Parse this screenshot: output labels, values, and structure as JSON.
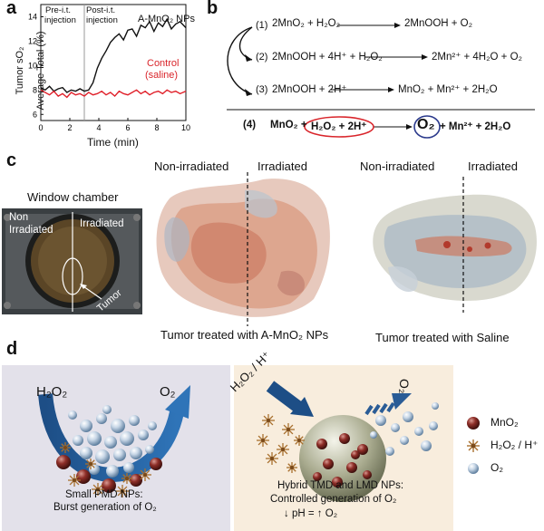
{
  "panel_a": {
    "label": "a",
    "pre_label_1": "Pre-i.t.",
    "pre_label_2": "injection",
    "post_label": "Post-i.t. injection",
    "series_label_np": "A-MnO₂ NPs",
    "series_label_control_1": "Control",
    "series_label_control_2": "(saline)",
    "chart_data": {
      "type": "line",
      "ylabel_1": "Tumor sO₂",
      "ylabel_2": "Average Total (%)",
      "xlabel": "Time (min)",
      "x_ticks": [
        "0",
        "2",
        "4",
        "6",
        "8",
        "10"
      ],
      "y_ticks": [
        "6",
        "8",
        "10",
        "12",
        "14"
      ],
      "xlim": [
        0,
        10
      ],
      "ylim": [
        5.5,
        15
      ],
      "injection_time": 3,
      "colors": {
        "np": "#111111",
        "control": "#e0202a"
      },
      "series": [
        {
          "name": "A-MnO₂ NPs",
          "x": [
            0,
            0.3,
            0.6,
            0.9,
            1.2,
            1.5,
            1.8,
            2.1,
            2.4,
            2.7,
            3.0,
            3.3,
            3.6,
            3.9,
            4.2,
            4.5,
            4.8,
            5.1,
            5.4,
            5.7,
            6.0,
            6.3,
            6.6,
            6.9,
            7.2,
            7.5,
            7.8,
            8.1,
            8.4,
            8.7,
            9.0,
            9.3,
            9.6,
            10
          ],
          "y": [
            8.2,
            8.0,
            8.3,
            7.9,
            8.1,
            8.2,
            7.8,
            8.0,
            7.9,
            8.1,
            7.9,
            8.0,
            8.6,
            9.8,
            10.6,
            11.2,
            11.9,
            12.3,
            12.6,
            12.1,
            12.9,
            13.0,
            12.4,
            13.3,
            13.1,
            13.6,
            12.8,
            13.5,
            13.2,
            13.8,
            13.0,
            13.4,
            13.6,
            13.1
          ]
        },
        {
          "name": "Control (saline)",
          "x": [
            0,
            0.3,
            0.6,
            0.9,
            1.2,
            1.5,
            1.8,
            2.1,
            2.4,
            2.7,
            3.0,
            3.3,
            3.6,
            3.9,
            4.2,
            4.5,
            4.8,
            5.1,
            5.4,
            5.7,
            6.0,
            6.3,
            6.6,
            6.9,
            7.2,
            7.5,
            7.8,
            8.1,
            8.4,
            8.7,
            9.0,
            9.3,
            9.6,
            10
          ],
          "y": [
            8.0,
            7.8,
            7.6,
            7.9,
            7.5,
            7.7,
            7.4,
            7.8,
            7.6,
            7.7,
            7.5,
            7.8,
            7.6,
            7.7,
            7.9,
            7.6,
            7.8,
            7.5,
            7.9,
            7.7,
            7.6,
            7.8,
            8.0,
            7.7,
            7.9,
            7.6,
            7.8,
            7.9,
            7.7,
            8.0,
            7.8,
            7.9,
            7.7,
            7.9
          ]
        }
      ]
    }
  },
  "panel_b": {
    "label": "b",
    "eq1_num": "(1)",
    "eq1_left": "2MnO₂ + H₂O₂",
    "eq1_right": "2MnOOH + O₂",
    "eq2_num": "(2)",
    "eq2_left": "2MnOOH + 4H⁺ + H₂O₂",
    "eq2_right": "2Mn²⁺ + 4H₂O + O₂",
    "eq3_num": "(3)",
    "eq3_left": "2MnOOH + 2H⁺",
    "eq3_right": "MnO₂ + Mn²⁺ + 2H₂O",
    "eq4_num": "(4)",
    "eq4_a": "MnO₂ +",
    "eq4_circled_left": "H₂O₂ + 2H⁺",
    "eq4_circled_right": "O₂",
    "eq4_c": "+ Mn²⁺ + 2H₂O",
    "red_circle_color": "#d9252b",
    "blue_circle_color": "#2b3a8c"
  },
  "panel_c": {
    "label": "c",
    "window_title": "Window chamber",
    "non_irradiated_1": "Non",
    "non_irradiated_2": "Irradiated",
    "irradiated": "Irradiated",
    "tumor": "Tumor",
    "mid_non": "Non-irradiated",
    "mid_irr": "Irradiated",
    "mid_caption": "Tumor treated with A-MnO₂ NPs",
    "right_non": "Non-irradiated",
    "right_irr": "Irradiated",
    "right_caption": "Tumor treated with Saline"
  },
  "panel_d": {
    "label": "d",
    "left_h2o2": "H₂O₂",
    "left_o2": "O₂",
    "left_caption_1": "Small PMD NPs:",
    "left_caption_2": "Burst generation of O₂",
    "right_h2o2": "H₂O₂ / H⁺",
    "right_o2": "O₂",
    "right_caption_1": "Hybrid TMD and LMD NPs:",
    "right_caption_2": "Controlled generation of O₂",
    "right_caption_3": "↓ pH = ↑ O₂",
    "legend": [
      {
        "label": "MnO₂",
        "icon": "dark-red-sphere"
      },
      {
        "label": "H₂O₂ / H⁺",
        "icon": "brown-spiky-particle"
      },
      {
        "label": "O₂",
        "icon": "blue-sphere"
      }
    ]
  }
}
